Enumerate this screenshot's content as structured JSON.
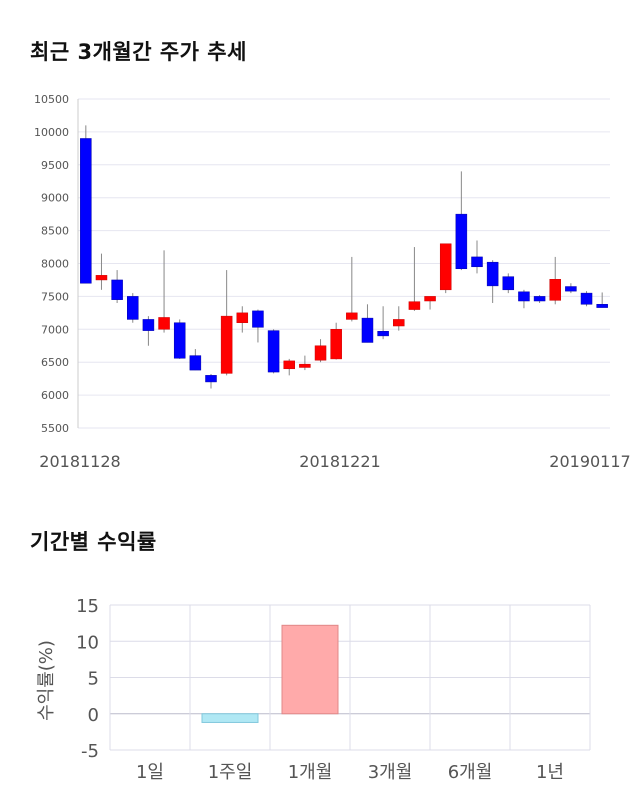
{
  "charts": {
    "candle_title": "최근 3개월간 주가 추세",
    "returns_title": "기간별 수익률"
  },
  "chart_data": [
    {
      "type": "candlestick",
      "title": "최근 3개월간 주가 추세",
      "ylim": [
        5500,
        10500
      ],
      "yticks": [
        5500,
        6000,
        6500,
        7000,
        7500,
        8000,
        8500,
        9000,
        9500,
        10000,
        10500
      ],
      "xtick_labels": [
        "20181128",
        "20181221",
        "20190117"
      ],
      "colors": {
        "up": "#ff0000",
        "down": "#0000ff",
        "wick": "#888888",
        "grid": "#e6e6f0"
      },
      "candles": [
        {
          "o": 9900,
          "h": 10100,
          "l": 7700,
          "c": 7700
        },
        {
          "o": 7750,
          "h": 8150,
          "l": 7600,
          "c": 7820
        },
        {
          "o": 7750,
          "h": 7900,
          "l": 7400,
          "c": 7450
        },
        {
          "o": 7500,
          "h": 7550,
          "l": 7100,
          "c": 7150
        },
        {
          "o": 7150,
          "h": 7200,
          "l": 6750,
          "c": 6980
        },
        {
          "o": 7000,
          "h": 8200,
          "l": 6950,
          "c": 7180
        },
        {
          "o": 7100,
          "h": 7150,
          "l": 6550,
          "c": 6560
        },
        {
          "o": 6600,
          "h": 6700,
          "l": 6380,
          "c": 6380
        },
        {
          "o": 6300,
          "h": 6320,
          "l": 6100,
          "c": 6200
        },
        {
          "o": 6330,
          "h": 7900,
          "l": 6300,
          "c": 7200
        },
        {
          "o": 7100,
          "h": 7350,
          "l": 6950,
          "c": 7250
        },
        {
          "o": 7280,
          "h": 7300,
          "l": 6800,
          "c": 7030
        },
        {
          "o": 6980,
          "h": 7000,
          "l": 6330,
          "c": 6350
        },
        {
          "o": 6400,
          "h": 6550,
          "l": 6300,
          "c": 6520
        },
        {
          "o": 6420,
          "h": 6600,
          "l": 6380,
          "c": 6470
        },
        {
          "o": 6530,
          "h": 6850,
          "l": 6500,
          "c": 6750
        },
        {
          "o": 6550,
          "h": 7100,
          "l": 6540,
          "c": 7000
        },
        {
          "o": 7150,
          "h": 8100,
          "l": 7120,
          "c": 7250
        },
        {
          "o": 7170,
          "h": 7380,
          "l": 6800,
          "c": 6800
        },
        {
          "o": 6970,
          "h": 7350,
          "l": 6850,
          "c": 6900
        },
        {
          "o": 7050,
          "h": 7350,
          "l": 6980,
          "c": 7150
        },
        {
          "o": 7300,
          "h": 8250,
          "l": 7280,
          "c": 7420
        },
        {
          "o": 7430,
          "h": 7500,
          "l": 7300,
          "c": 7500
        },
        {
          "o": 7600,
          "h": 8300,
          "l": 7550,
          "c": 8300
        },
        {
          "o": 8750,
          "h": 9400,
          "l": 7900,
          "c": 7920
        },
        {
          "o": 8100,
          "h": 8350,
          "l": 7850,
          "c": 7950
        },
        {
          "o": 8020,
          "h": 8050,
          "l": 7400,
          "c": 7660
        },
        {
          "o": 7800,
          "h": 7850,
          "l": 7550,
          "c": 7600
        },
        {
          "o": 7570,
          "h": 7600,
          "l": 7320,
          "c": 7430
        },
        {
          "o": 7500,
          "h": 7520,
          "l": 7400,
          "c": 7430
        },
        {
          "o": 7440,
          "h": 8100,
          "l": 7380,
          "c": 7760
        },
        {
          "o": 7650,
          "h": 7700,
          "l": 7550,
          "c": 7580
        },
        {
          "o": 7550,
          "h": 7580,
          "l": 7350,
          "c": 7380
        },
        {
          "o": 7380,
          "h": 7560,
          "l": 7330,
          "c": 7330
        }
      ]
    },
    {
      "type": "bar",
      "title": "기간별 수익률",
      "ylabel": "수익률(%)",
      "ylim": [
        -5,
        15
      ],
      "yticks": [
        -5,
        0,
        5,
        10,
        15
      ],
      "categories": [
        "1일",
        "1주일",
        "1개월",
        "3개월",
        "6개월",
        "1년"
      ],
      "values": [
        0,
        -1.2,
        12.2,
        0,
        0,
        0
      ],
      "colors": {
        "positive": "#ffaaaa",
        "negative": "#b0e8f4",
        "grid": "#dcdce8"
      }
    }
  ]
}
